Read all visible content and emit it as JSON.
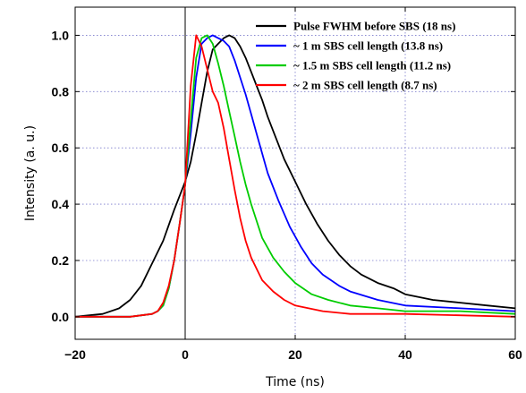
{
  "chart_data": {
    "type": "line",
    "title": "",
    "xlabel": "Time (ns)",
    "ylabel": "Intensity (a. u.)",
    "xlim": [
      -20,
      60
    ],
    "ylim": [
      -0.08,
      1.1
    ],
    "x_ticks": [
      -20,
      0,
      20,
      40,
      60
    ],
    "x_tick_labels": [
      "−20",
      "0",
      "20",
      "40",
      "60"
    ],
    "y_ticks": [
      0.0,
      0.2,
      0.4,
      0.6,
      0.8,
      1.0
    ],
    "y_tick_labels": [
      "0.0",
      "0.2",
      "0.4",
      "0.6",
      "0.8",
      "1.0"
    ],
    "grid": "dotted, at x = 20 and 40 and y = 0.2 to 1.0",
    "vertical_reference_line_x": 0,
    "legend_position": "top-right",
    "series": [
      {
        "name": "Pulse FWHM before SBS (18 ns)",
        "color": "#000000",
        "points": [
          [
            -20,
            0.0
          ],
          [
            -15,
            0.01
          ],
          [
            -12,
            0.03
          ],
          [
            -10,
            0.06
          ],
          [
            -8,
            0.11
          ],
          [
            -6,
            0.19
          ],
          [
            -4,
            0.27
          ],
          [
            -2,
            0.38
          ],
          [
            0,
            0.48
          ],
          [
            1,
            0.55
          ],
          [
            2,
            0.65
          ],
          [
            3,
            0.76
          ],
          [
            4,
            0.87
          ],
          [
            5,
            0.95
          ],
          [
            6,
            0.97
          ],
          [
            7,
            0.99
          ],
          [
            8,
            1.0
          ],
          [
            9,
            0.99
          ],
          [
            10,
            0.96
          ],
          [
            11,
            0.92
          ],
          [
            12,
            0.87
          ],
          [
            13,
            0.82
          ],
          [
            14,
            0.77
          ],
          [
            15,
            0.71
          ],
          [
            16,
            0.66
          ],
          [
            18,
            0.56
          ],
          [
            20,
            0.48
          ],
          [
            22,
            0.4
          ],
          [
            24,
            0.33
          ],
          [
            26,
            0.27
          ],
          [
            28,
            0.22
          ],
          [
            30,
            0.18
          ],
          [
            32,
            0.15
          ],
          [
            35,
            0.12
          ],
          [
            38,
            0.1
          ],
          [
            40,
            0.08
          ],
          [
            45,
            0.06
          ],
          [
            50,
            0.05
          ],
          [
            55,
            0.04
          ],
          [
            60,
            0.03
          ]
        ]
      },
      {
        "name": "~ 1 m SBS cell length (13.8 ns)",
        "color": "#0000ff",
        "points": [
          [
            -20,
            0.0
          ],
          [
            -10,
            0.0
          ],
          [
            -6,
            0.01
          ],
          [
            -5,
            0.02
          ],
          [
            -4,
            0.04
          ],
          [
            -3,
            0.1
          ],
          [
            -2,
            0.2
          ],
          [
            -1,
            0.33
          ],
          [
            0,
            0.47
          ],
          [
            1,
            0.65
          ],
          [
            2,
            0.85
          ],
          [
            3,
            0.97
          ],
          [
            4,
            0.99
          ],
          [
            5,
            1.0
          ],
          [
            6,
            0.99
          ],
          [
            7,
            0.98
          ],
          [
            8,
            0.96
          ],
          [
            9,
            0.91
          ],
          [
            10,
            0.85
          ],
          [
            11,
            0.79
          ],
          [
            12,
            0.72
          ],
          [
            13,
            0.65
          ],
          [
            14,
            0.58
          ],
          [
            15,
            0.51
          ],
          [
            17,
            0.41
          ],
          [
            19,
            0.32
          ],
          [
            21,
            0.25
          ],
          [
            23,
            0.19
          ],
          [
            25,
            0.15
          ],
          [
            28,
            0.11
          ],
          [
            30,
            0.09
          ],
          [
            35,
            0.06
          ],
          [
            40,
            0.04
          ],
          [
            50,
            0.03
          ],
          [
            60,
            0.02
          ]
        ]
      },
      {
        "name": "~ 1.5 m SBS cell length (11.2 ns)",
        "color": "#00cc00",
        "points": [
          [
            -20,
            0.0
          ],
          [
            -10,
            0.0
          ],
          [
            -6,
            0.01
          ],
          [
            -5,
            0.02
          ],
          [
            -4,
            0.04
          ],
          [
            -3,
            0.1
          ],
          [
            -2,
            0.2
          ],
          [
            -1,
            0.33
          ],
          [
            0,
            0.47
          ],
          [
            1,
            0.7
          ],
          [
            2,
            0.92
          ],
          [
            3,
            0.99
          ],
          [
            4,
            1.0
          ],
          [
            5,
            0.97
          ],
          [
            6,
            0.9
          ],
          [
            7,
            0.82
          ],
          [
            8,
            0.73
          ],
          [
            9,
            0.64
          ],
          [
            10,
            0.55
          ],
          [
            11,
            0.47
          ],
          [
            12,
            0.4
          ],
          [
            13,
            0.34
          ],
          [
            14,
            0.28
          ],
          [
            16,
            0.21
          ],
          [
            18,
            0.16
          ],
          [
            20,
            0.12
          ],
          [
            23,
            0.08
          ],
          [
            26,
            0.06
          ],
          [
            30,
            0.04
          ],
          [
            35,
            0.03
          ],
          [
            40,
            0.02
          ],
          [
            50,
            0.02
          ],
          [
            60,
            0.01
          ]
        ]
      },
      {
        "name": "~ 2 m SBS cell length (8.7 ns)",
        "color": "#ff0000",
        "points": [
          [
            -20,
            0.0
          ],
          [
            -10,
            0.0
          ],
          [
            -6,
            0.01
          ],
          [
            -5,
            0.02
          ],
          [
            -4,
            0.05
          ],
          [
            -3,
            0.11
          ],
          [
            -2,
            0.2
          ],
          [
            -1,
            0.33
          ],
          [
            0,
            0.47
          ],
          [
            1,
            0.82
          ],
          [
            2,
            1.0
          ],
          [
            3,
            0.96
          ],
          [
            4,
            0.88
          ],
          [
            5,
            0.8
          ],
          [
            6,
            0.76
          ],
          [
            7,
            0.67
          ],
          [
            8,
            0.56
          ],
          [
            9,
            0.45
          ],
          [
            10,
            0.35
          ],
          [
            11,
            0.27
          ],
          [
            12,
            0.21
          ],
          [
            14,
            0.13
          ],
          [
            16,
            0.09
          ],
          [
            18,
            0.06
          ],
          [
            20,
            0.04
          ],
          [
            25,
            0.02
          ],
          [
            30,
            0.01
          ],
          [
            40,
            0.01
          ],
          [
            60,
            0.0
          ]
        ]
      }
    ]
  }
}
